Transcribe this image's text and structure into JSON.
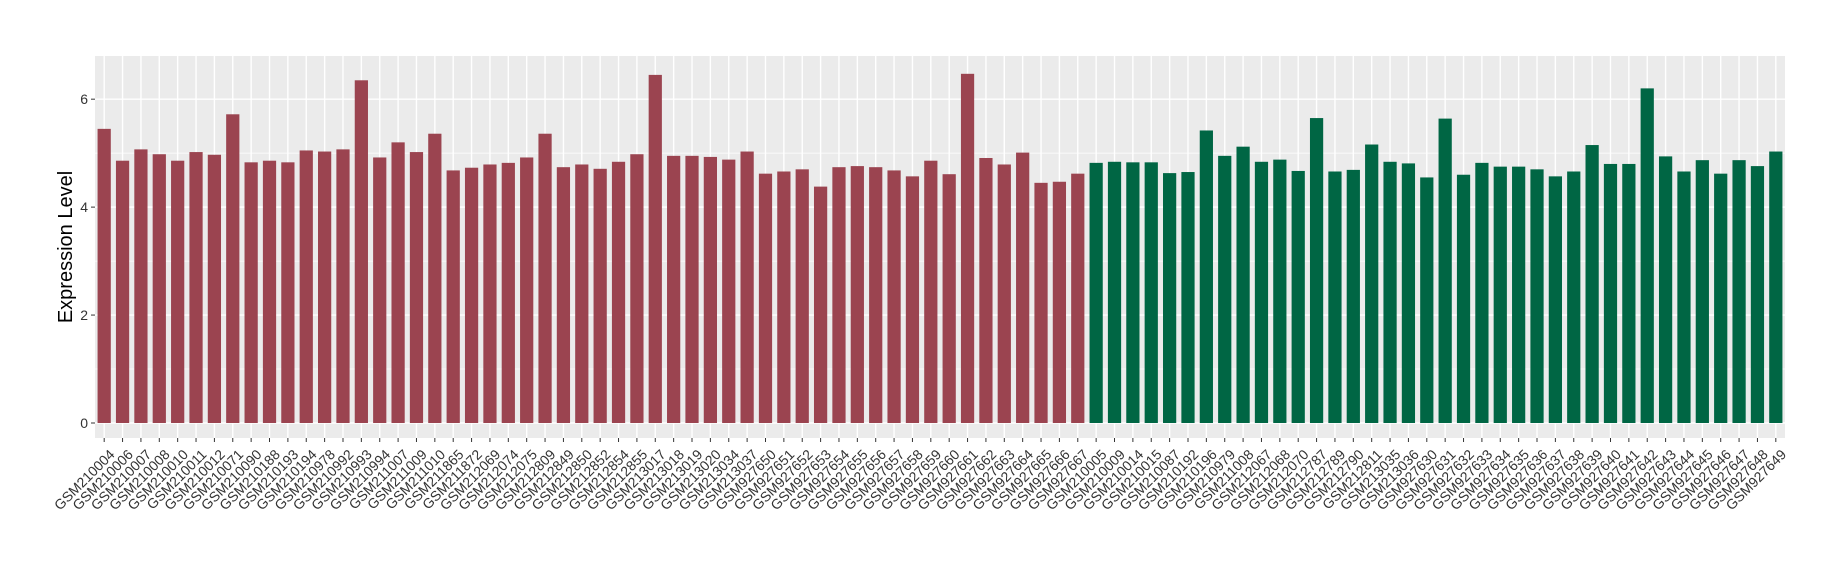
{
  "chart_data": {
    "type": "bar",
    "title": "",
    "xlabel": "",
    "ylabel": "Expression Level",
    "ylim": [
      0,
      6.8
    ],
    "yticks": [
      0,
      2,
      4,
      6
    ],
    "grid": true,
    "legend": "none",
    "colors": {
      "group_1": "#9b4450",
      "group_2": "#006644",
      "panel": "#ebebeb",
      "grid": "#ffffff"
    },
    "categories": [
      "GSM210004",
      "GSM210006",
      "GSM210007",
      "GSM210008",
      "GSM210010",
      "GSM210011",
      "GSM210012",
      "GSM210071",
      "GSM210090",
      "GSM210188",
      "GSM210193",
      "GSM210194",
      "GSM210978",
      "GSM210992",
      "GSM210993",
      "GSM210994",
      "GSM211007",
      "GSM211009",
      "GSM211010",
      "GSM211865",
      "GSM211872",
      "GSM212069",
      "GSM212074",
      "GSM212075",
      "GSM212809",
      "GSM212849",
      "GSM212850",
      "GSM212852",
      "GSM212854",
      "GSM212855",
      "GSM213017",
      "GSM213018",
      "GSM213019",
      "GSM213020",
      "GSM213034",
      "GSM213037",
      "GSM927650",
      "GSM927651",
      "GSM927652",
      "GSM927653",
      "GSM927654",
      "GSM927655",
      "GSM927656",
      "GSM927657",
      "GSM927658",
      "GSM927659",
      "GSM927660",
      "GSM927661",
      "GSM927662",
      "GSM927663",
      "GSM927664",
      "GSM927665",
      "GSM927666",
      "GSM927667",
      "GSM210005",
      "GSM210009",
      "GSM210014",
      "GSM210015",
      "GSM210087",
      "GSM210192",
      "GSM210196",
      "GSM210979",
      "GSM211008",
      "GSM212067",
      "GSM212068",
      "GSM212070",
      "GSM212787",
      "GSM212789",
      "GSM212790",
      "GSM212811",
      "GSM213035",
      "GSM213036",
      "GSM927630",
      "GSM927631",
      "GSM927632",
      "GSM927633",
      "GSM927634",
      "GSM927635",
      "GSM927636",
      "GSM927637",
      "GSM927638",
      "GSM927639",
      "GSM927640",
      "GSM927641",
      "GSM927642",
      "GSM927643",
      "GSM927644",
      "GSM927645",
      "GSM927646",
      "GSM927647",
      "GSM927648",
      "GSM927649"
    ],
    "values": [
      5.45,
      4.86,
      5.07,
      4.98,
      4.86,
      5.02,
      4.97,
      5.72,
      4.83,
      4.86,
      4.83,
      5.05,
      5.03,
      5.07,
      6.35,
      4.92,
      5.2,
      5.02,
      5.36,
      4.68,
      4.73,
      4.79,
      4.82,
      4.92,
      5.36,
      4.74,
      4.79,
      4.71,
      4.84,
      4.98,
      6.45,
      4.95,
      4.95,
      4.93,
      4.88,
      5.03,
      4.62,
      4.66,
      4.7,
      4.38,
      4.74,
      4.76,
      4.74,
      4.68,
      4.57,
      4.86,
      4.61,
      6.47,
      4.91,
      4.79,
      5.01,
      4.45,
      4.47,
      4.62,
      4.82,
      4.84,
      4.83,
      4.83,
      4.63,
      4.65,
      5.42,
      4.95,
      5.12,
      4.84,
      4.88,
      4.67,
      5.65,
      4.66,
      4.69,
      5.16,
      4.84,
      4.81,
      4.55,
      5.64,
      4.6,
      4.82,
      4.75,
      4.75,
      4.7,
      4.57,
      4.66,
      5.15,
      4.8,
      4.8,
      6.2,
      4.94,
      4.66,
      4.87,
      4.62,
      4.87,
      4.76,
      5.03
    ],
    "groups": [
      1,
      1,
      1,
      1,
      1,
      1,
      1,
      1,
      1,
      1,
      1,
      1,
      1,
      1,
      1,
      1,
      1,
      1,
      1,
      1,
      1,
      1,
      1,
      1,
      1,
      1,
      1,
      1,
      1,
      1,
      1,
      1,
      1,
      1,
      1,
      1,
      1,
      1,
      1,
      1,
      1,
      1,
      1,
      1,
      1,
      1,
      1,
      1,
      1,
      1,
      1,
      1,
      1,
      1,
      2,
      2,
      2,
      2,
      2,
      2,
      2,
      2,
      2,
      2,
      2,
      2,
      2,
      2,
      2,
      2,
      2,
      2,
      2,
      2,
      2,
      2,
      2,
      2,
      2,
      2,
      2,
      2,
      2,
      2,
      2,
      2,
      2,
      2,
      2,
      2,
      2,
      2
    ]
  }
}
